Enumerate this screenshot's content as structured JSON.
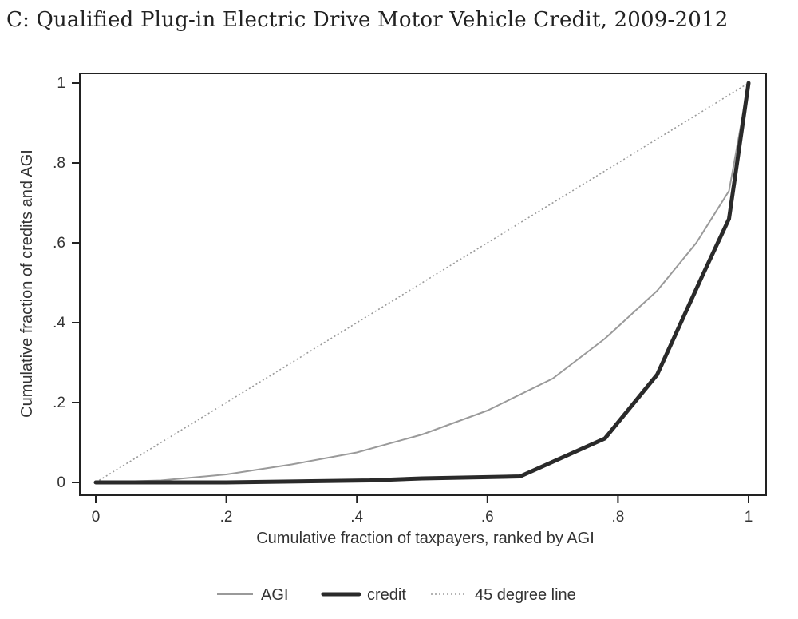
{
  "chart_data": {
    "type": "line",
    "title": "C: Qualified Plug-in Electric Drive Motor Vehicle Credit, 2009-2012",
    "xlabel": "Cumulative fraction of taxpayers, ranked by AGI",
    "ylabel": "Cumulative fraction of credits and AGI",
    "xlim": [
      0,
      1
    ],
    "ylim": [
      0,
      1
    ],
    "xticks": [
      {
        "value": 0,
        "label": "0"
      },
      {
        "value": 0.2,
        "label": ".2"
      },
      {
        "value": 0.4,
        "label": ".4"
      },
      {
        "value": 0.6,
        "label": ".6"
      },
      {
        "value": 0.8,
        "label": ".8"
      },
      {
        "value": 1,
        "label": "1"
      }
    ],
    "yticks": [
      {
        "value": 0,
        "label": "0"
      },
      {
        "value": 0.2,
        "label": ".2"
      },
      {
        "value": 0.4,
        "label": ".4"
      },
      {
        "value": 0.6,
        "label": ".6"
      },
      {
        "value": 0.8,
        "label": ".8"
      },
      {
        "value": 1,
        "label": "1"
      }
    ],
    "grid": false,
    "legend_position": "bottom",
    "series": [
      {
        "name": "AGI",
        "color": "#9a9a9a",
        "style": "solid-thin",
        "x": [
          0,
          0.1,
          0.2,
          0.3,
          0.4,
          0.5,
          0.6,
          0.7,
          0.78,
          0.86,
          0.92,
          0.97,
          1.0
        ],
        "y": [
          0,
          0.005,
          0.02,
          0.045,
          0.075,
          0.12,
          0.18,
          0.26,
          0.36,
          0.48,
          0.6,
          0.73,
          1.0
        ]
      },
      {
        "name": "credit",
        "color": "#2a2a2a",
        "style": "solid-thick",
        "x": [
          0,
          0.2,
          0.42,
          0.5,
          0.65,
          0.78,
          0.86,
          0.93,
          0.97,
          1.0
        ],
        "y": [
          0,
          0.0,
          0.005,
          0.01,
          0.015,
          0.11,
          0.27,
          0.52,
          0.66,
          1.0
        ]
      },
      {
        "name": "45 degree line",
        "color": "#9a9a9a",
        "style": "dotted",
        "x": [
          0,
          1
        ],
        "y": [
          0,
          1
        ]
      }
    ]
  }
}
